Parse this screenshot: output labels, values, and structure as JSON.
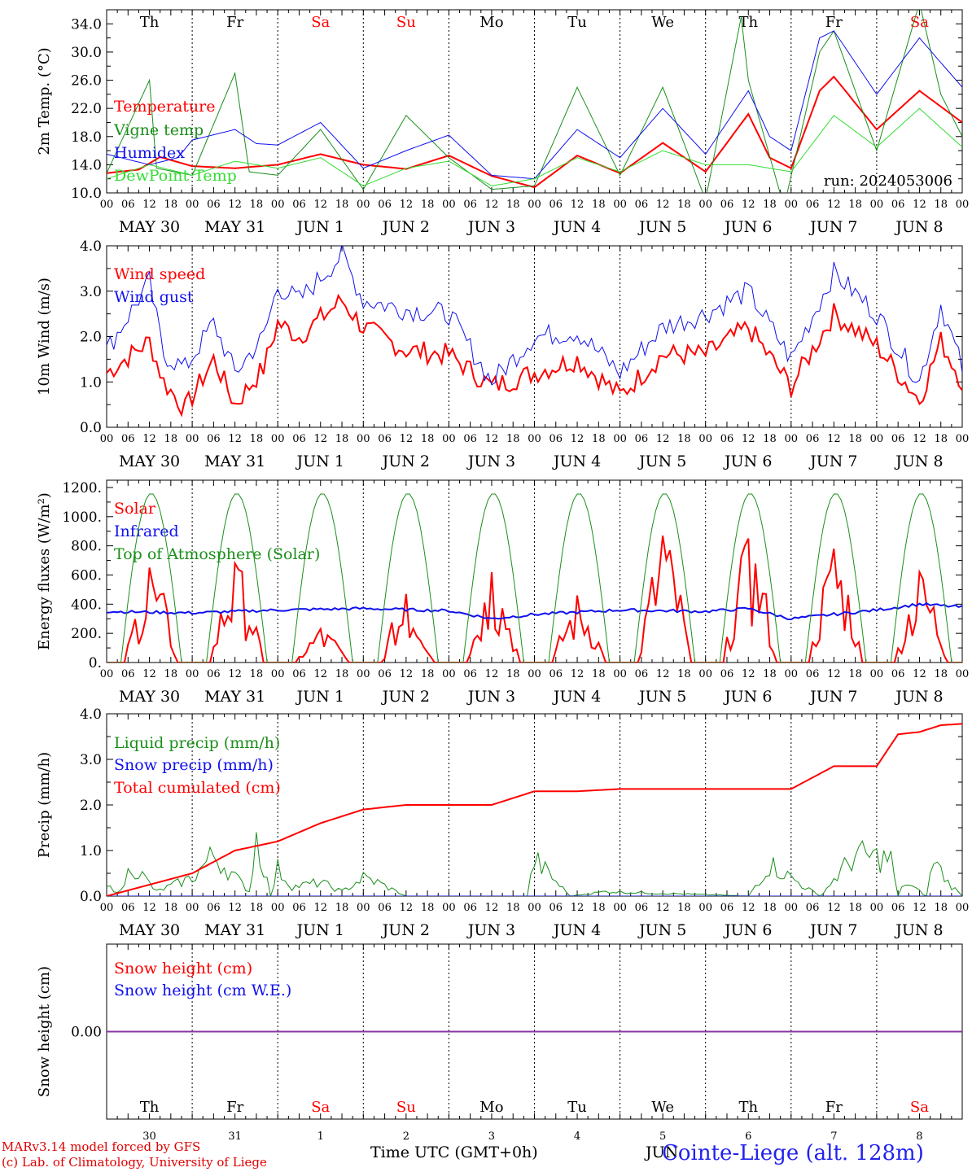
{
  "footer": {
    "credit_line1": "MARv3.14 model forced by GFS",
    "credit_line2": "(c) Lab. of Climatology, University of Liege",
    "time_axis_label": "Time UTC (GMT+0h)",
    "month_label": "JUN",
    "station": "Cointe-Liege (alt. 128m)"
  },
  "run_label": "run: 2024053006",
  "day_names": [
    "Th",
    "Fr",
    "Sa",
    "Su",
    "Mo",
    "Tu",
    "We",
    "Th",
    "Fr",
    "Sa"
  ],
  "weekend_days": [
    2,
    3,
    9
  ],
  "date_labels": [
    "MAY 30",
    "MAY 31",
    "JUN  1",
    "JUN  2",
    "JUN  3",
    "JUN  4",
    "JUN  5",
    "JUN  6",
    "JUN  7",
    "JUN  8"
  ],
  "day_numbers": [
    "30",
    "31",
    "1",
    "2",
    "3",
    "4",
    "5",
    "6",
    "7",
    "8"
  ],
  "hour_labels": [
    "00",
    "06",
    "12",
    "18"
  ],
  "colors": {
    "red": "#ff0000",
    "green": "#1a8f1a",
    "blue": "#1010ee",
    "lightgreen": "#33dd33",
    "purple": "#8833aa",
    "axis": "#000000",
    "grid": "#000000"
  },
  "chart_data": [
    {
      "type": "line",
      "ylabel": "2m Temp. (°C)",
      "ylim": [
        10,
        36
      ],
      "yticks": [
        "10.0",
        "14.0",
        "18.0",
        "22.0",
        "26.0",
        "30.0",
        "34.0"
      ],
      "x_unit": "hours since MAY 30 00 UTC",
      "series": [
        {
          "name": "Temperature",
          "color": "red",
          "x": [
            0,
            9,
            15,
            24,
            36,
            48,
            60,
            72,
            84,
            96,
            108,
            120,
            132,
            144,
            156,
            168,
            180,
            186,
            192,
            200,
            204,
            216,
            228,
            240
          ],
          "values": [
            12.8,
            13.3,
            15.1,
            13.8,
            13.5,
            14.0,
            15.5,
            14.0,
            13.4,
            15.3,
            12.4,
            10.8,
            15.3,
            12.8,
            17.1,
            13.0,
            21.2,
            15.0,
            13.5,
            24.5,
            26.5,
            19.0,
            24.5,
            20.0
          ]
        },
        {
          "name": "Vigne temp",
          "color": "green",
          "x": [
            0,
            12,
            14,
            24,
            36,
            40,
            48,
            60,
            72,
            84,
            96,
            108,
            120,
            132,
            144,
            156,
            168,
            178,
            180,
            190,
            200,
            204,
            216,
            228,
            234,
            240
          ],
          "values": [
            12.8,
            26.0,
            13.5,
            12.5,
            27.0,
            13.0,
            12.5,
            19.0,
            10.5,
            21.0,
            15.0,
            10.5,
            11.0,
            25.0,
            12.5,
            25.0,
            9.0,
            35.0,
            26.0,
            8.0,
            30.0,
            33.0,
            16.0,
            37.0,
            24.0,
            18.0
          ]
        },
        {
          "name": "Humidex",
          "color": "blue",
          "x": [
            0,
            12,
            20,
            24,
            36,
            42,
            48,
            60,
            72,
            84,
            96,
            108,
            120,
            132,
            144,
            156,
            168,
            180,
            186,
            192,
            200,
            204,
            216,
            228,
            240
          ],
          "values": [
            15.5,
            14.0,
            15.0,
            17.5,
            19.0,
            17.0,
            16.8,
            20.0,
            13.5,
            16.0,
            18.2,
            12.5,
            12.0,
            19.0,
            15.0,
            22.0,
            15.5,
            24.5,
            18.0,
            16.0,
            32.0,
            33.0,
            24.0,
            32.0,
            25.0
          ]
        },
        {
          "name": "DewPoint Temp",
          "color": "lightgreen",
          "x": [
            0,
            12,
            24,
            36,
            48,
            60,
            72,
            84,
            96,
            108,
            120,
            132,
            144,
            156,
            168,
            180,
            192,
            204,
            216,
            228,
            240
          ],
          "values": [
            12.0,
            14.0,
            12.5,
            14.5,
            13.5,
            15.0,
            11.0,
            13.5,
            14.5,
            11.0,
            12.0,
            15.0,
            13.0,
            16.0,
            14.0,
            14.0,
            13.0,
            21.0,
            16.5,
            22.0,
            16.5
          ]
        }
      ]
    },
    {
      "type": "line",
      "ylabel": "10m Wind (m/s)",
      "ylim": [
        0,
        4
      ],
      "yticks": [
        "0.0",
        "1.0",
        "2.0",
        "3.0",
        "4.0"
      ],
      "series": [
        {
          "name": "Wind speed",
          "color": "red",
          "x": [
            0,
            12,
            16,
            22,
            30,
            36,
            44,
            48,
            54,
            66,
            72,
            84,
            96,
            108,
            120,
            132,
            144,
            156,
            168,
            180,
            192,
            204,
            216,
            228,
            234,
            240
          ],
          "values": [
            1.2,
            1.9,
            1.0,
            0.4,
            1.5,
            0.5,
            1.3,
            2.3,
            2.0,
            2.8,
            2.2,
            1.7,
            1.6,
            0.9,
            1.2,
            1.5,
            0.7,
            1.6,
            1.6,
            2.2,
            0.9,
            2.5,
            1.8,
            0.6,
            1.9,
            1.0
          ]
        },
        {
          "name": "Wind gust",
          "color": "blue",
          "x": [
            0,
            12,
            16,
            22,
            30,
            36,
            44,
            48,
            54,
            66,
            72,
            84,
            96,
            108,
            120,
            132,
            144,
            156,
            168,
            180,
            192,
            204,
            216,
            228,
            234,
            240
          ],
          "values": [
            1.7,
            3.2,
            1.6,
            1.3,
            2.3,
            1.2,
            2.0,
            3.1,
            2.8,
            3.8,
            2.8,
            2.6,
            2.5,
            1.0,
            2.0,
            2.1,
            1.2,
            2.2,
            2.5,
            3.0,
            1.5,
            3.4,
            2.5,
            1.0,
            2.7,
            1.3
          ]
        }
      ]
    },
    {
      "type": "line",
      "ylabel": "Energy fluxes (W/m²)",
      "ylim": [
        0,
        1250
      ],
      "yticks": [
        "0.",
        "200.",
        "400.",
        "600.",
        "800.",
        "1000.",
        "1200."
      ],
      "series": [
        {
          "name": "Solar",
          "color": "red",
          "daily_peaks": [
            650,
            680,
            230,
            470,
            620,
            460,
            870,
            850,
            780,
            620
          ]
        },
        {
          "name": "Infrared",
          "color": "blue",
          "x": [
            0,
            24,
            48,
            72,
            96,
            108,
            120,
            144,
            168,
            180,
            192,
            216,
            228,
            240
          ],
          "values": [
            350,
            340,
            360,
            370,
            355,
            300,
            330,
            360,
            350,
            370,
            300,
            360,
            400,
            380
          ]
        },
        {
          "name": "Top of Atmosphere (Solar)",
          "color": "green",
          "daily_peak": 1160,
          "sunrise_h": 4,
          "sunset_h": 21
        }
      ]
    },
    {
      "type": "line",
      "ylabel": "Precip (mm/h)",
      "ylim": [
        0,
        4
      ],
      "yticks": [
        "0.0",
        "1.0",
        "2.0",
        "3.0",
        "4.0"
      ],
      "series": [
        {
          "name": "Liquid precip (mm/h)",
          "color": "green",
          "x": [
            0,
            4,
            7,
            14,
            24,
            30,
            40,
            42,
            46,
            48,
            52,
            60,
            66,
            72,
            76,
            84,
            90,
            118,
            120,
            130,
            140,
            180,
            186,
            192,
            200,
            210,
            220,
            222,
            224,
            230,
            232,
            236,
            240
          ],
          "values": [
            0.2,
            0.1,
            0.7,
            0.1,
            0.4,
            0.9,
            0.1,
            1.3,
            0.0,
            0.6,
            0.2,
            0.3,
            0.1,
            0.4,
            0.3,
            0.0,
            0.0,
            0.0,
            0.8,
            0.0,
            0.1,
            0.0,
            0.7,
            0.4,
            0.0,
            0.9,
            0.8,
            0.0,
            0.3,
            0.0,
            0.8,
            0.3,
            0.0
          ]
        },
        {
          "name": "Snow precip (mm/h)",
          "color": "blue",
          "x": [
            0,
            240
          ],
          "values": [
            0,
            0
          ]
        },
        {
          "name": "Total cumulated (cm)",
          "color": "red",
          "x": [
            0,
            24,
            36,
            48,
            60,
            72,
            84,
            96,
            108,
            120,
            132,
            144,
            156,
            168,
            180,
            192,
            204,
            216,
            222,
            228,
            234,
            240
          ],
          "values": [
            0.0,
            0.5,
            1.0,
            1.2,
            1.6,
            1.9,
            2.0,
            2.0,
            2.0,
            2.3,
            2.3,
            2.35,
            2.35,
            2.35,
            2.35,
            2.35,
            2.85,
            2.85,
            3.55,
            3.6,
            3.75,
            3.78
          ]
        }
      ]
    },
    {
      "type": "line",
      "ylabel": "Snow height (cm)",
      "yticks": [
        "0.00"
      ],
      "series": [
        {
          "name": "Snow height (cm)",
          "color": "red",
          "x": [
            0,
            240
          ],
          "values": [
            0,
            0
          ]
        },
        {
          "name": "Snow height (cm W.E.)",
          "color": "blue",
          "x": [
            0,
            240
          ],
          "values": [
            0,
            0
          ]
        }
      ]
    }
  ]
}
